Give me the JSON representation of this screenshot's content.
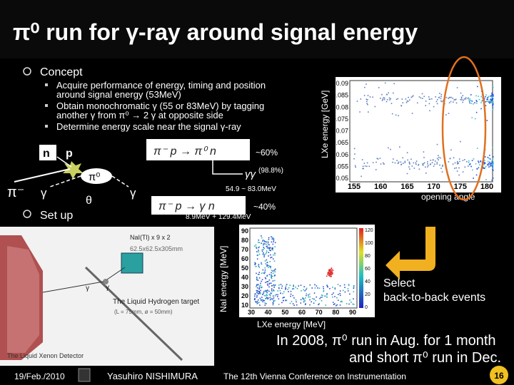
{
  "header": {
    "title": "π⁰ run for γ-ray around signal energy"
  },
  "concept": {
    "heading": "Concept",
    "bullets": [
      [
        "Acquire performance of energy, timing and position",
        "around signal energy (53MeV)"
      ],
      [
        "Obtain monochromatic γ (55 or 83MeV) by tagging",
        "another γ from π⁰ → 2 γ at opposite side"
      ],
      [
        "Determine energy scale near the signal γ-ray"
      ]
    ]
  },
  "diagram": {
    "n": "n",
    "p": "p",
    "pi0": "π⁰",
    "pi_minus": "π⁻",
    "gamma_left": "γ",
    "theta": "θ",
    "gamma_right": "γ"
  },
  "reactions": {
    "charge_exchange": "π⁻ p → π⁰ n",
    "charge_exchange_fraction": "~60%",
    "decay": "γγ",
    "decay_fraction": "(98.8%)",
    "gamma_range": "54.9 ~ 83.0MeV",
    "radiative_capture": "π⁻ p → γ n",
    "radiative_fraction": "~40%",
    "radiative_energies": "8.9MeV + 129.4MeV"
  },
  "setup": {
    "heading": "Set up",
    "nai": "NaI(Tl) x 9 x 2",
    "nai_size": "62.5x62.5x305mm",
    "target": "The Liquid Hydrogen target",
    "target_size": "(L = 75mm, ø = 50mm)",
    "xenon": "The Liquid Xenon Detector",
    "gamma_1": "γ",
    "gamma_2": "γ"
  },
  "angle_plot": {
    "y_label": "LXe energy [GeV]",
    "x_label": "opening angle",
    "y_ticks": [
      "0.09",
      "0.085",
      "0.08",
      "0.075",
      "0.07",
      "0.065",
      "0.06",
      "0.055",
      "0.05"
    ],
    "x_ticks": [
      "155",
      "160",
      "165",
      "170",
      "175",
      "180"
    ]
  },
  "energy_plot": {
    "y_label": "NaI energy [MeV]",
    "x_label": "LXe energy [MeV]",
    "y_ticks": [
      "90",
      "80",
      "70",
      "60",
      "50",
      "40",
      "30",
      "20",
      "10"
    ],
    "x_ticks": [
      "30",
      "40",
      "50",
      "60",
      "70",
      "80",
      "90"
    ],
    "color_ticks": [
      "120",
      "100",
      "80",
      "60",
      "40",
      "20",
      "0"
    ]
  },
  "selection": {
    "lines": [
      "Select",
      "back-to-back events"
    ]
  },
  "summary": {
    "lines": [
      "In 2008, π⁰ run in Aug. for 1 month",
      "and short π⁰ run in Dec."
    ]
  },
  "footer": {
    "date": "19/Feb./2010",
    "author": "Yasuhiro NISHIMURA",
    "conference": "The 12th Vienna Conference on Instrumentation",
    "page": "16"
  }
}
